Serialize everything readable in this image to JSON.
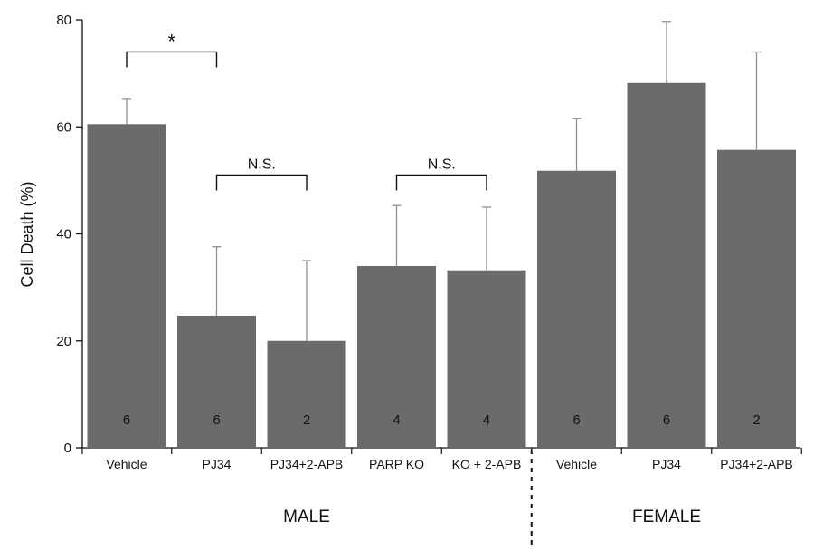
{
  "chart_data": {
    "type": "bar",
    "ylabel": "Cell Death (%)",
    "ylim": [
      0,
      80
    ],
    "yticks": [
      0,
      20,
      40,
      60,
      80
    ],
    "bar_color": "#6b6b6b",
    "error_color": "#909090",
    "categories": [
      "Vehicle",
      "PJ34",
      "PJ34+2-APB",
      "PARP KO",
      "KO + 2-APB",
      "Vehicle",
      "PJ34",
      "PJ34+2-APB"
    ],
    "values": [
      60.5,
      24.7,
      20.0,
      34.0,
      33.2,
      51.8,
      68.2,
      55.7
    ],
    "error_upper": [
      65.3,
      37.6,
      35.0,
      45.3,
      45.0,
      61.6,
      79.7,
      74.0
    ],
    "n": [
      "6",
      "6",
      "2",
      "4",
      "4",
      "6",
      "6",
      "2"
    ],
    "groups": [
      {
        "label": "MALE",
        "start": 0,
        "end": 4
      },
      {
        "label": "FEMALE",
        "start": 5,
        "end": 7
      }
    ],
    "comparisons": [
      {
        "from": 0,
        "to": 1,
        "y": 74,
        "label": "*"
      },
      {
        "from": 1,
        "to": 2,
        "y": 51,
        "label": "N.S."
      },
      {
        "from": 3,
        "to": 4,
        "y": 51,
        "label": "N.S."
      }
    ]
  }
}
